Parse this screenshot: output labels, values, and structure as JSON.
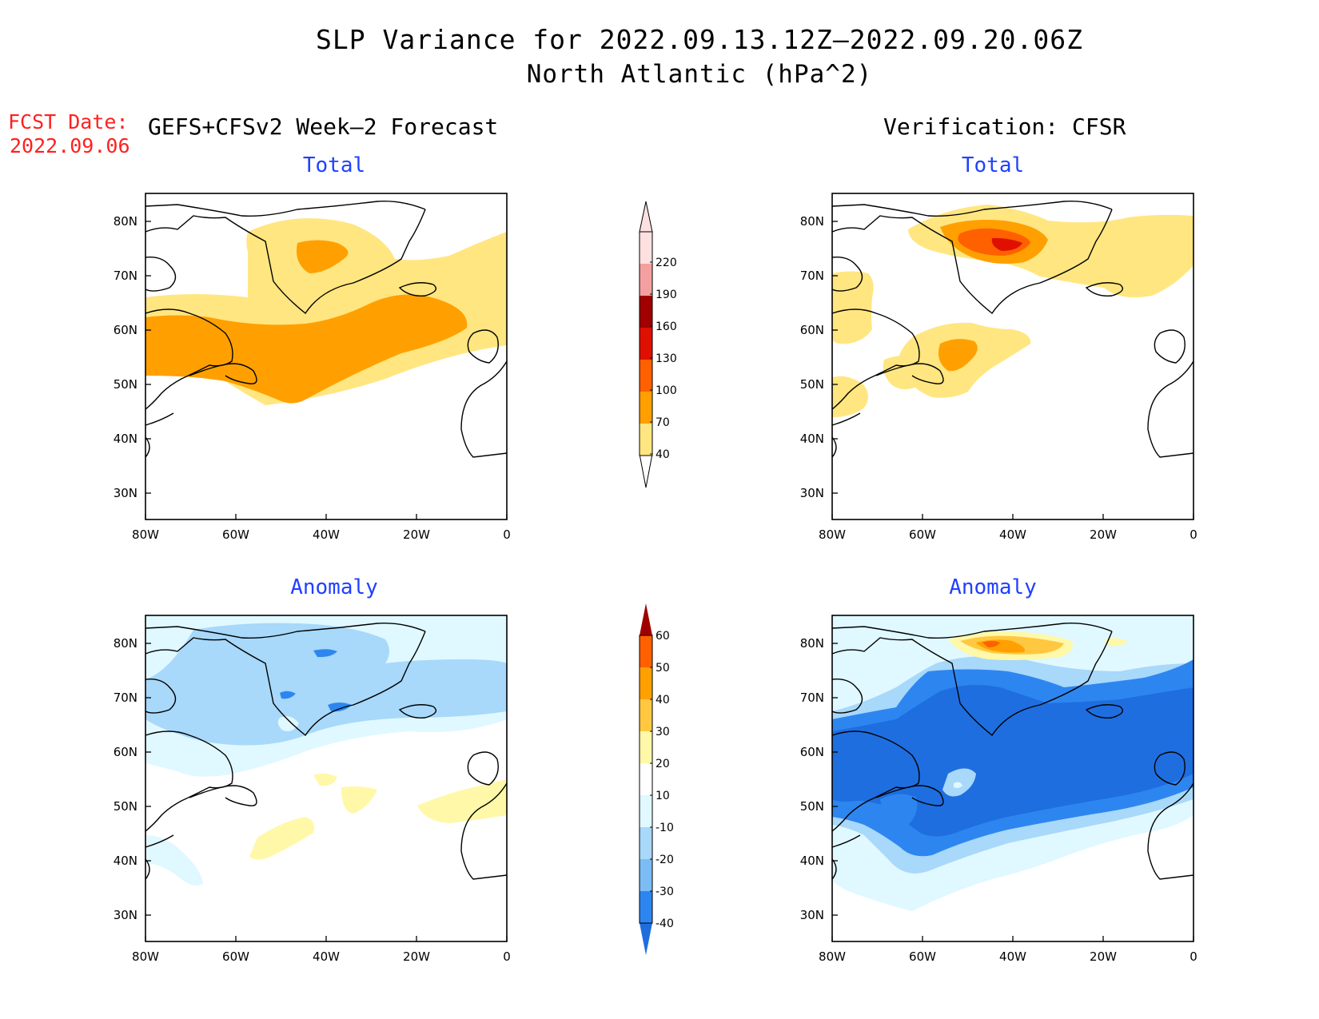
{
  "title": {
    "line1": "SLP Variance for 2022.09.13.12Z–2022.09.20.06Z",
    "line2": "North Atlantic (hPa^2)"
  },
  "forecast_date": {
    "label": "FCST Date:",
    "value": "2022.09.06"
  },
  "columns": {
    "left": "GEFS+CFSv2 Week–2 Forecast",
    "right": "Verification: CFSR"
  },
  "panels": {
    "forecast_total": "Total",
    "forecast_anomaly": "Anomaly",
    "verification_total": "Total",
    "verification_anomaly": "Anomaly"
  },
  "axes": {
    "lon_labels": [
      "80W",
      "60W",
      "40W",
      "20W",
      "0"
    ],
    "lat_labels": [
      "80N",
      "70N",
      "60N",
      "50N",
      "40N",
      "30N"
    ]
  },
  "colorbars": {
    "total": {
      "levels": [
        "40",
        "70",
        "100",
        "130",
        "160",
        "190",
        "220"
      ],
      "colors": [
        "#ffe680",
        "#ffa000",
        "#ff6000",
        "#e01000",
        "#a00000",
        "#f4a0a0",
        "#fde0e0"
      ]
    },
    "anomaly": {
      "levels": [
        "-40",
        "-30",
        "-20",
        "-10",
        "10",
        "20",
        "30",
        "40",
        "50",
        "60"
      ],
      "colors": [
        "#1e6ee0",
        "#2d86f0",
        "#7cbcf4",
        "#a8d8fa",
        "#e0f8ff",
        "#ffffff",
        "#fff8a8",
        "#ffc840",
        "#ffa000",
        "#ff6000",
        "#e01000",
        "#a00000"
      ]
    }
  }
}
